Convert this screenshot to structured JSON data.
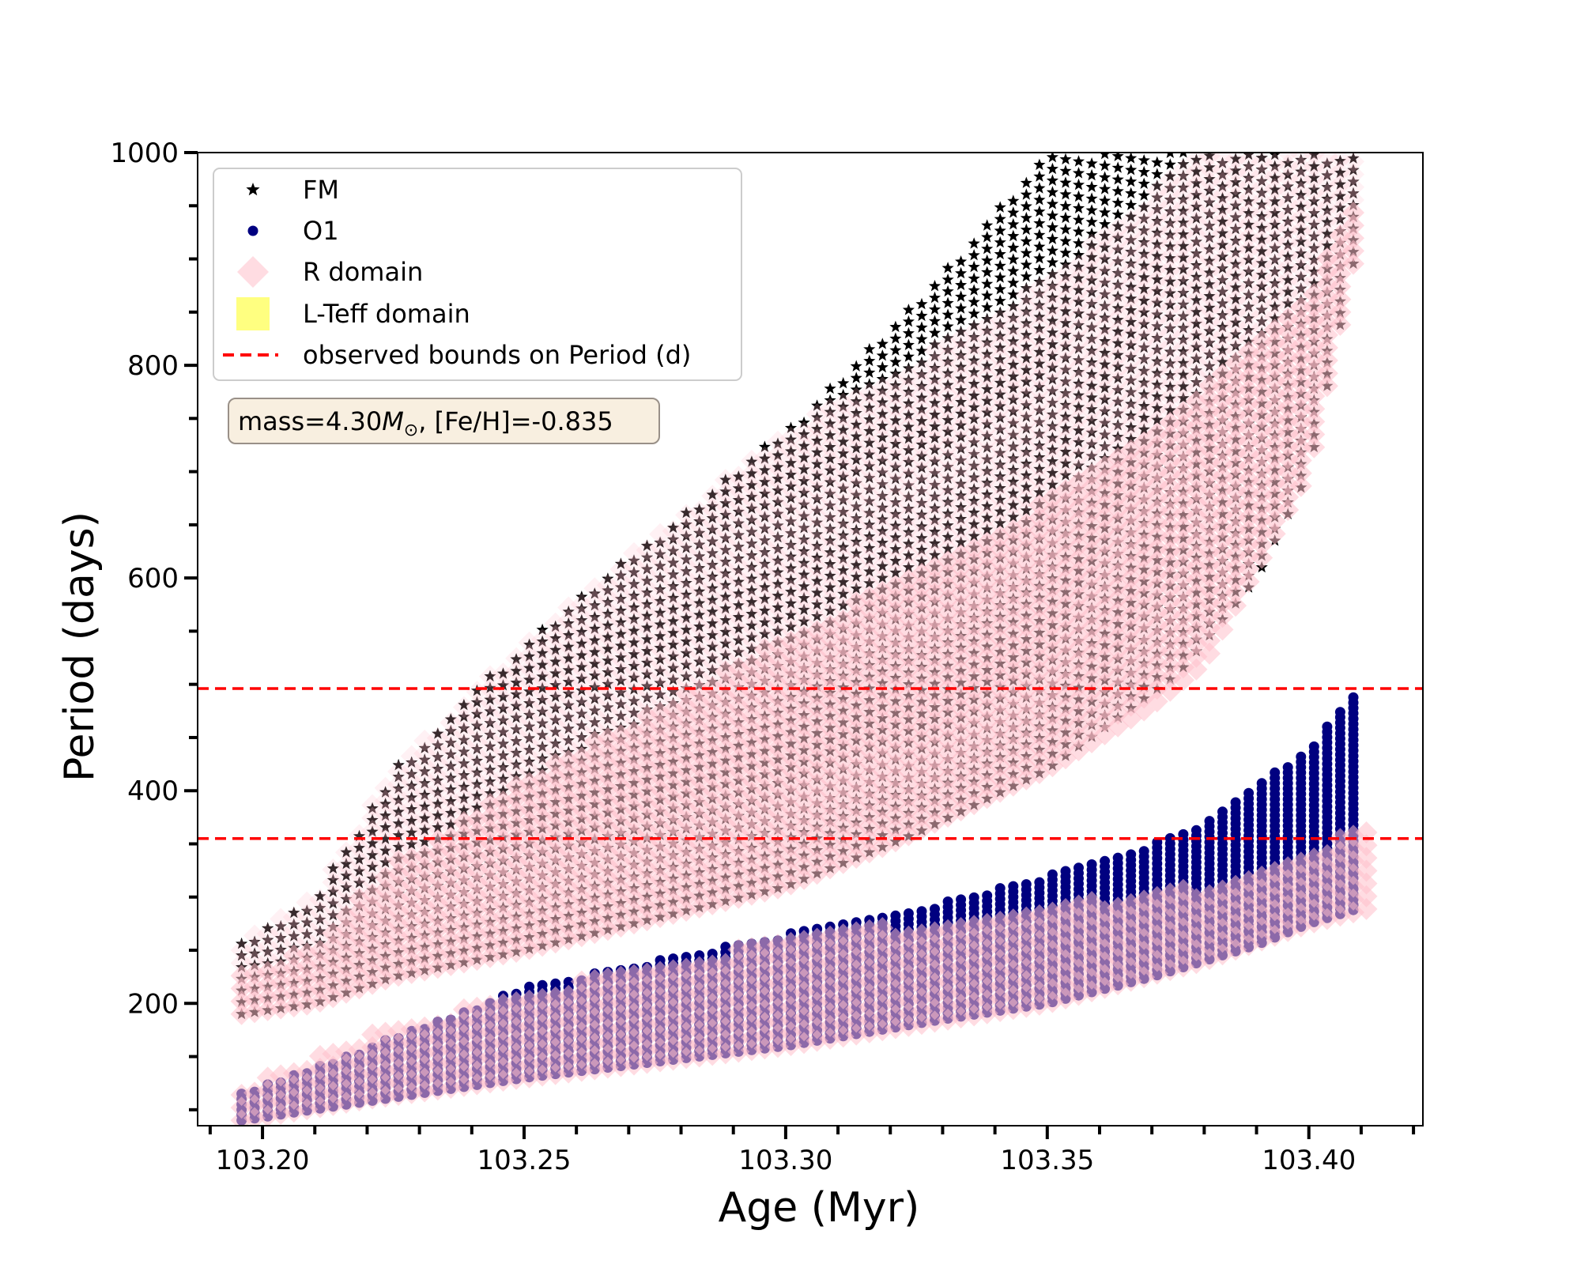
{
  "chart_data": {
    "type": "scatter",
    "xlabel": "Age (Myr)",
    "ylabel": "Period (days)",
    "xlim": [
      103.1876,
      103.4218
    ],
    "ylim": [
      85,
      1000
    ],
    "xticks": [
      103.2,
      103.25,
      103.3,
      103.35,
      103.4
    ],
    "xtick_labels": [
      "103.20",
      "103.25",
      "103.30",
      "103.35",
      "103.40"
    ],
    "yticks": [
      200,
      400,
      600,
      800,
      1000
    ],
    "ytick_labels": [
      "200",
      "400",
      "600",
      "800",
      "1000"
    ],
    "grid": false,
    "legend_placement": "top-left",
    "legend": [
      {
        "label": "FM",
        "marker": "star",
        "color": "#000000"
      },
      {
        "label": "O1",
        "marker": "circle",
        "color": "#000080"
      },
      {
        "label": "R domain",
        "marker": "diamond",
        "color": "#ffc0cb"
      },
      {
        "label": "L-Teff domain",
        "marker": "square",
        "color": "#ffff80"
      },
      {
        "label": "observed bounds on Period (d)",
        "marker": "dashed-line",
        "color": "#ff0000"
      }
    ],
    "annotation": {
      "prefix": "mass=4.30",
      "symbol": "M",
      "subscript": "⊙",
      "suffix": ", [Fe/H]=-0.835"
    },
    "hlines": [
      496,
      355
    ],
    "series": [
      {
        "name": "FM",
        "marker": "star",
        "color": "#000000",
        "envelope": [
          [
            103.196,
            190,
            260
          ],
          [
            103.21,
            200,
            300
          ],
          [
            103.225,
            225,
            420
          ],
          [
            103.25,
            250,
            540
          ],
          [
            103.275,
            280,
            640
          ],
          [
            103.3,
            310,
            740
          ],
          [
            103.325,
            360,
            860
          ],
          [
            103.35,
            420,
            1000
          ],
          [
            103.375,
            510,
            1000
          ],
          [
            103.39,
            600,
            1000
          ],
          [
            103.4,
            700,
            1000
          ],
          [
            103.41,
            930,
            1000
          ]
        ]
      },
      {
        "name": "O1",
        "marker": "circle",
        "color": "#000080",
        "envelope": [
          [
            103.196,
            90,
            115
          ],
          [
            103.25,
            130,
            215
          ],
          [
            103.3,
            160,
            265
          ],
          [
            103.33,
            185,
            295
          ],
          [
            103.35,
            200,
            320
          ],
          [
            103.37,
            225,
            350
          ],
          [
            103.38,
            240,
            370
          ],
          [
            103.39,
            255,
            405
          ],
          [
            103.4,
            275,
            440
          ],
          [
            103.41,
            290,
            500
          ]
        ]
      },
      {
        "name": "R domain",
        "marker": "diamond",
        "color": "#ffc0cb",
        "envelope_upper_band": [
          [
            103.196,
            190,
            260
          ],
          [
            103.21,
            200,
            300
          ],
          [
            103.225,
            225,
            420
          ],
          [
            103.25,
            250,
            540
          ],
          [
            103.275,
            280,
            640
          ],
          [
            103.3,
            310,
            740
          ],
          [
            103.32,
            350,
            790
          ],
          [
            103.35,
            420,
            880
          ],
          [
            103.37,
            480,
            960
          ],
          [
            103.38,
            520,
            1000
          ],
          [
            103.4,
            700,
            1000
          ],
          [
            103.41,
            930,
            1000
          ]
        ],
        "envelope_lower_band": [
          [
            103.196,
            90,
            120
          ],
          [
            103.22,
            110,
            170
          ],
          [
            103.25,
            130,
            210
          ],
          [
            103.3,
            160,
            260
          ],
          [
            103.35,
            200,
            290
          ],
          [
            103.38,
            240,
            310
          ],
          [
            103.4,
            275,
            340
          ],
          [
            103.412,
            290,
            370
          ]
        ]
      },
      {
        "name": "L-Teff domain",
        "marker": "square",
        "color": "#ffff80",
        "envelope": []
      }
    ]
  }
}
